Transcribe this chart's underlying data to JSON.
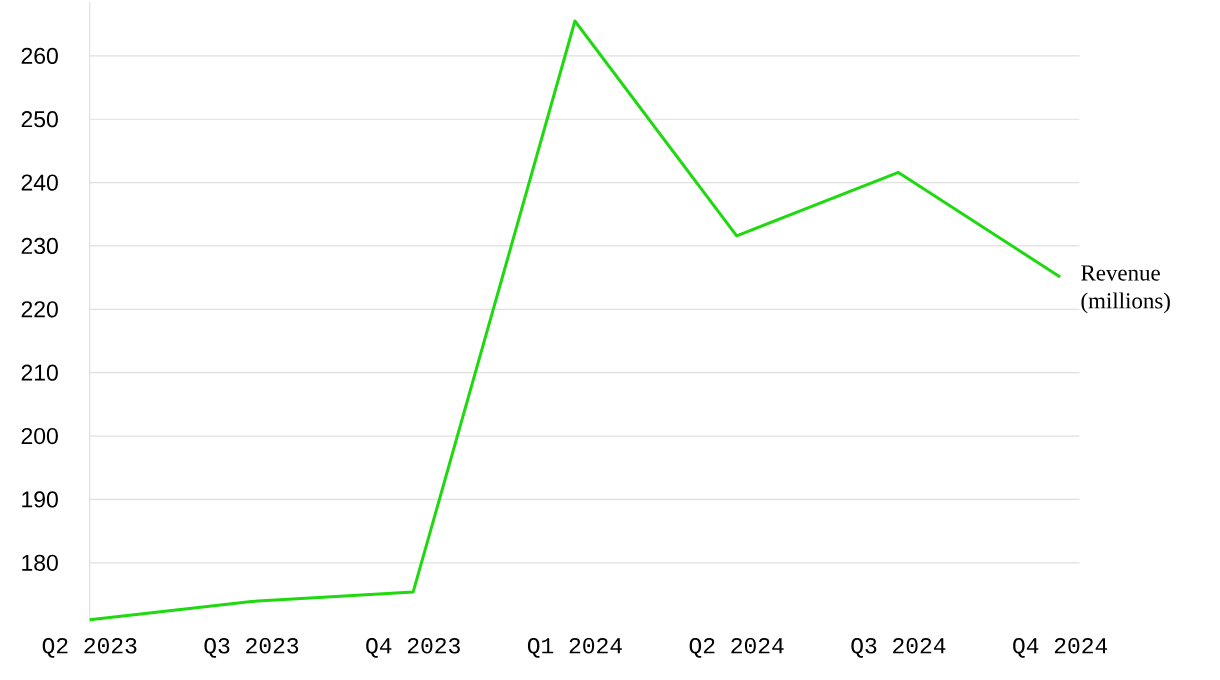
{
  "chart_data": {
    "type": "line",
    "categories": [
      "Q2 2023",
      "Q3 2023",
      "Q4 2023",
      "Q1 2024",
      "Q2 2024",
      "Q3 2024",
      "Q4 2024"
    ],
    "series": [
      {
        "name": "Revenue (millions)",
        "color": "#1ed90f",
        "values": [
          171.0,
          173.9,
          175.4,
          265.5,
          231.6,
          241.6,
          225.1
        ]
      }
    ],
    "ylim": [
      170.5,
      268.5
    ],
    "yticks": [
      180,
      190,
      200,
      210,
      220,
      230,
      240,
      250,
      260
    ],
    "grid": "y"
  }
}
